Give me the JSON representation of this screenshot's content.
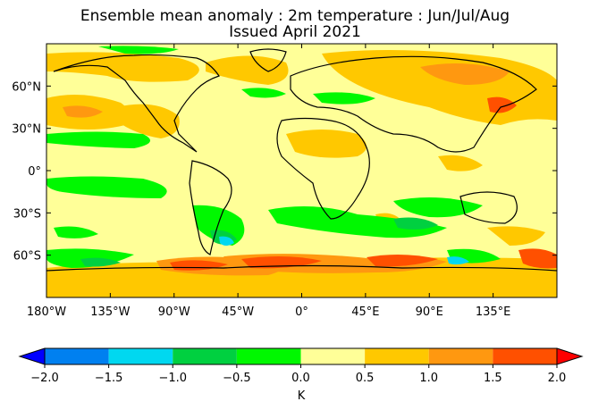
{
  "title_line1": "Ensemble mean anomaly : 2m temperature : Jun/Jul/Aug",
  "title_line2": "Issued April 2021",
  "lat_ticks": [
    {
      "label": "60°N",
      "lat": 60
    },
    {
      "label": "30°N",
      "lat": 30
    },
    {
      "label": "0°",
      "lat": 0
    },
    {
      "label": "30°S",
      "lat": -30
    },
    {
      "label": "60°S",
      "lat": -60
    }
  ],
  "lon_ticks": [
    {
      "label": "180°W",
      "lon": -180
    },
    {
      "label": "135°W",
      "lon": -135
    },
    {
      "label": "90°W",
      "lon": -90
    },
    {
      "label": "45°W",
      "lon": -45
    },
    {
      "label": "0°",
      "lon": 0
    },
    {
      "label": "45°E",
      "lon": 45
    },
    {
      "label": "90°E",
      "lon": 90
    },
    {
      "label": "135°E",
      "lon": 135
    }
  ],
  "colorbar": {
    "unit": "K",
    "ticks": [
      "−2.0",
      "−1.5",
      "−1.0",
      "−0.5",
      "0.0",
      "0.5",
      "1.0",
      "1.5",
      "2.0"
    ],
    "under_color": "#0000ff",
    "over_color": "#ff0000",
    "bins": [
      "#0080f0",
      "#00d8f0",
      "#00d040",
      "#00f800",
      "#ffff98",
      "#ffc800",
      "#ff9810",
      "#ff5000"
    ]
  },
  "colors": {
    "ocean_base": "#ffff98",
    "land_outline": "#000000"
  }
}
